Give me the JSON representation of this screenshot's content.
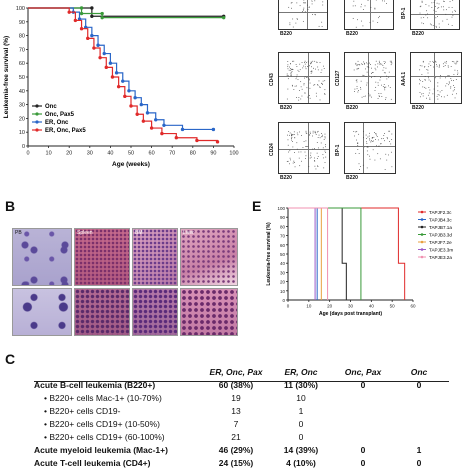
{
  "panel_b_letter": "B",
  "panel_c_letter": "C",
  "panel_e_letter": "E",
  "chart_data": [
    {
      "type": "line",
      "title": "",
      "xlabel": "Age (weeks)",
      "ylabel": "Leukemia-free survival (%)",
      "xlim": [
        0,
        100
      ],
      "ylim": [
        0,
        100
      ],
      "xticks": [
        "0",
        "10",
        "20",
        "30",
        "40",
        "50",
        "60",
        "70",
        "80",
        "90",
        "100"
      ],
      "yticks": [
        "0",
        "10",
        "20",
        "30",
        "40",
        "50",
        "60",
        "70",
        "80",
        "90",
        "100"
      ],
      "legend_position": "bottom-left",
      "series": [
        {
          "name": "Onc",
          "color": "#222222",
          "x": [
            0,
            31,
            31,
            95
          ],
          "y": [
            100,
            100,
            94,
            94
          ]
        },
        {
          "name": "Onc, Pax5",
          "color": "#3a9a3a",
          "x": [
            0,
            26,
            26,
            36,
            36,
            95
          ],
          "y": [
            100,
            100,
            96,
            96,
            93,
            93
          ]
        },
        {
          "name": "ER, Onc",
          "color": "#2a66c8",
          "x": [
            0,
            22,
            25,
            28,
            31,
            34,
            37,
            40,
            43,
            46,
            49,
            52,
            55,
            58,
            62,
            66,
            75,
            90
          ],
          "y": [
            100,
            97,
            92,
            86,
            80,
            73,
            67,
            60,
            53,
            47,
            40,
            35,
            30,
            24,
            19,
            15,
            12,
            12
          ]
        },
        {
          "name": "ER, Onc, Pax5",
          "color": "#e02a2a",
          "x": [
            0,
            20,
            23,
            26,
            29,
            32,
            35,
            38,
            41,
            44,
            47,
            50,
            53,
            56,
            60,
            65,
            72,
            82,
            92
          ],
          "y": [
            100,
            97,
            91,
            85,
            78,
            71,
            64,
            57,
            50,
            43,
            36,
            29,
            23,
            18,
            13,
            9,
            6,
            4,
            3
          ]
        }
      ]
    },
    {
      "type": "line",
      "title": "",
      "xlabel": "Age (days post transplant)",
      "ylabel": "Leukemia-free survival (%)",
      "xlim": [
        0,
        60
      ],
      "ylim": [
        0,
        100
      ],
      "xticks": [
        "0",
        "10",
        "20",
        "30",
        "40",
        "50",
        "60"
      ],
      "yticks": [
        "0",
        "10",
        "20",
        "30",
        "40",
        "50",
        "60",
        "70",
        "80",
        "90",
        "100"
      ],
      "legend_position": "right",
      "series": [
        {
          "name": "TAPJF2.3c",
          "color": "#e02a2a",
          "x": [
            0,
            53,
            53,
            56,
            56
          ],
          "y": [
            100,
            100,
            40,
            40,
            0
          ]
        },
        {
          "name": "TAPJB4.3c",
          "color": "#2a66c8",
          "x": [
            0,
            14,
            14
          ],
          "y": [
            100,
            100,
            0
          ]
        },
        {
          "name": "TAPJB7.1a",
          "color": "#222222",
          "x": [
            0,
            26,
            26,
            28,
            28
          ],
          "y": [
            100,
            100,
            40,
            40,
            0
          ]
        },
        {
          "name": "TAPJB3.3d",
          "color": "#3a9a3a",
          "x": [
            0,
            35,
            35
          ],
          "y": [
            100,
            100,
            0
          ]
        },
        {
          "name": "TAPJF7.2e",
          "color": "#e8a040",
          "x": [
            0,
            16,
            16
          ],
          "y": [
            100,
            100,
            0
          ]
        },
        {
          "name": "TAPJE3.3m",
          "color": "#9b5bc8",
          "x": [
            0,
            13,
            13
          ],
          "y": [
            100,
            100,
            0
          ]
        },
        {
          "name": "TAPJE3.2a",
          "color": "#f090b0",
          "x": [
            0,
            19,
            19
          ],
          "y": [
            100,
            100,
            0
          ]
        }
      ]
    }
  ],
  "flow": {
    "top_row": [
      {
        "xlab": "B220"
      },
      {
        "xlab": "B220"
      },
      {
        "xlab": "B220"
      }
    ],
    "grid": [
      {
        "ylab": "CD43",
        "xlab": "B220"
      },
      {
        "ylab": "CD127",
        "xlab": "B220"
      },
      {
        "ylab": "AA4.1",
        "xlab": "B220"
      },
      {
        "ylab": "CD24",
        "xlab": "B220"
      },
      {
        "ylab": "BP-1",
        "xlab": "B220"
      }
    ],
    "top_partial_labels": [
      "BP-1"
    ]
  },
  "histology": {
    "labels": [
      "PB",
      "Spleen",
      "BM",
      "Liver"
    ]
  },
  "table": {
    "headers": [
      "",
      "ER, Onc, Pax",
      "ER, Onc",
      "Onc, Pax",
      "Onc"
    ],
    "rows": [
      {
        "label": "Acute B-cell leukemia (B220+)",
        "cells": [
          "60 (38%)",
          "11 (30%)",
          "0",
          "0"
        ],
        "style": "bold"
      },
      {
        "label": "• B220+ cells Mac-1+ (10-70%)",
        "cells": [
          "19",
          "10",
          "",
          ""
        ],
        "style": "sub"
      },
      {
        "label": "• B220+ cells CD19-",
        "cells": [
          "13",
          "1",
          "",
          ""
        ],
        "style": "sub"
      },
      {
        "label": "• B220+ cells CD19+ (10-50%)",
        "cells": [
          "7",
          "0",
          "",
          ""
        ],
        "style": "sub"
      },
      {
        "label": "• B220+ cells CD19+ (60-100%)",
        "cells": [
          "21",
          "0",
          "",
          ""
        ],
        "style": "sub"
      },
      {
        "label": "Acute myeloid leukemia (Mac-1+)",
        "cells": [
          "46 (29%)",
          "14 (39%)",
          "0",
          "1"
        ],
        "style": "bold"
      },
      {
        "label": "Acute T-cell leukemia (CD4+)",
        "cells": [
          "24 (15%)",
          "4 (10%)",
          "0",
          "0"
        ],
        "style": "bold"
      }
    ]
  }
}
